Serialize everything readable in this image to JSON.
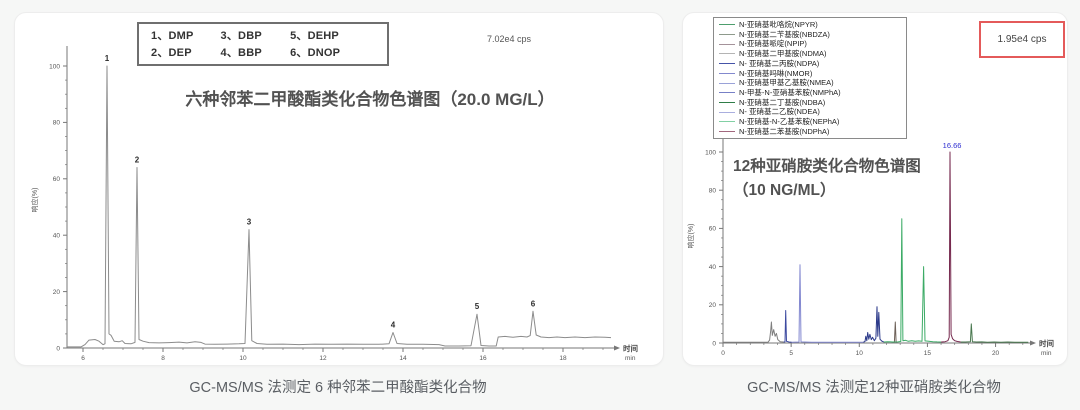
{
  "page": {
    "background": "#f6f7f6",
    "card_background": "#ffffff"
  },
  "left_panel": {
    "caption": "GC-MS/MS 法测定 6 种邻苯二甲酸酯类化合物",
    "title": "六种邻苯二甲酸酯类化合物色谱图（20.0 MG/L）",
    "cps_label": "7.02e4 cps",
    "ylabel": "响应(%)",
    "legend": {
      "cells": [
        "1、DMP",
        "3、DBP",
        "5、DEHP",
        "2、DEP",
        "4、BBP",
        "6、DNOP"
      ]
    }
  },
  "right_panel": {
    "caption": "GC-MS/MS 法测定12种亚硝胺类化合物",
    "title_line1": "12种亚硝胺类化合物色谱图",
    "title_line2": "（10 NG/ML）",
    "cps_label": "1.95e4 cps",
    "cps_box_color": "#e45a5a",
    "ylabel": "响应(%)",
    "legend_items": [
      {
        "label": "N-亚硝基吡咯烷(NPYR)",
        "color": "#4d9e6d"
      },
      {
        "label": "N-亚硝基二苄基胺(NBDZA)",
        "color": "#8e9a8c"
      },
      {
        "label": "N-亚硝基哌啶(NPIP)",
        "color": "#a4929a"
      },
      {
        "label": "N-亚硝基二甲基胺(NDMA)",
        "color": "#b4b4b4"
      },
      {
        "label": "N- 亚硝基二丙胺(NDPA)",
        "color": "#4553a8"
      },
      {
        "label": "N-亚硝基吗啉(NMOR)",
        "color": "#8389ce"
      },
      {
        "label": "N-亚硝基甲基乙基胺(NMEA)",
        "color": "#9aa2d8"
      },
      {
        "label": "N-甲基-N-亚硝基苯胺(NMPhA)",
        "color": "#7780c6"
      },
      {
        "label": "N-亚硝基二丁基胺(NDBA)",
        "color": "#2f7d48"
      },
      {
        "label": "N- 亚硝基二乙胺(NDEA)",
        "color": "#a9aede"
      },
      {
        "label": "N-亚硝基-N-乙基苯胺(NEPhA)",
        "color": "#82d0a4"
      },
      {
        "label": "N-亚硝基二苯基胺(NDPhA)",
        "color": "#a2687e"
      }
    ]
  },
  "chart_data": [
    {
      "type": "line",
      "title": "六种邻苯二甲酸酯类化合物色谱图（20.0 MG/L）",
      "xlabel": "时间",
      "x_unit": "min",
      "ylabel": "响应(%)",
      "xlim": [
        5.6,
        19.3
      ],
      "ylim": [
        0,
        100
      ],
      "xticks": [
        6,
        8,
        10,
        12,
        14,
        16,
        18
      ],
      "yticks": [
        0,
        20,
        40,
        60,
        80,
        100
      ],
      "x_minor_step": 0.5,
      "y_minor_step": 5,
      "annotation": "7.02e4 cps",
      "axis_color": "#777777",
      "grid": false,
      "peaks": [
        {
          "num": "1",
          "compound": "DMP",
          "rt": 6.6,
          "height_pct": 100
        },
        {
          "num": "2",
          "compound": "DEP",
          "rt": 7.35,
          "height_pct": 64
        },
        {
          "num": "3",
          "compound": "DBP",
          "rt": 10.15,
          "height_pct": 42
        },
        {
          "num": "4",
          "compound": "BBP",
          "rt": 13.75,
          "height_pct": 5.5
        },
        {
          "num": "5",
          "compound": "DEHP",
          "rt": 15.85,
          "height_pct": 12
        },
        {
          "num": "6",
          "compound": "DNOP",
          "rt": 17.25,
          "height_pct": 13
        }
      ],
      "traces": [
        {
          "name": "TIC",
          "color": "#8c8c8c",
          "width": 1,
          "points": [
            [
              5.6,
              0.4
            ],
            [
              5.95,
              0.4
            ],
            [
              6.05,
              1.2
            ],
            [
              6.15,
              2.8
            ],
            [
              6.3,
              3.0
            ],
            [
              6.4,
              2.4
            ],
            [
              6.5,
              1.2
            ],
            [
              6.55,
              1.5
            ],
            [
              6.6,
              100
            ],
            [
              6.65,
              5
            ],
            [
              6.7,
              4.5
            ],
            [
              6.78,
              2.4
            ],
            [
              6.9,
              2.2
            ],
            [
              6.98,
              2.6
            ],
            [
              7.05,
              1.6
            ],
            [
              7.2,
              1.5
            ],
            [
              7.3,
              2
            ],
            [
              7.35,
              64
            ],
            [
              7.4,
              3
            ],
            [
              7.5,
              2.4
            ],
            [
              7.65,
              1.9
            ],
            [
              7.9,
              1.8
            ],
            [
              8.15,
              1.9
            ],
            [
              8.4,
              2.1
            ],
            [
              8.6,
              1.8
            ],
            [
              8.8,
              2.2
            ],
            [
              8.95,
              2.0
            ],
            [
              9.05,
              1.4
            ],
            [
              9.3,
              1.3
            ],
            [
              9.6,
              1.4
            ],
            [
              9.9,
              1.5
            ],
            [
              10.05,
              1.6
            ],
            [
              10.15,
              42
            ],
            [
              10.22,
              2.6
            ],
            [
              10.35,
              1.6
            ],
            [
              10.6,
              1.3
            ],
            [
              11.0,
              1.4
            ],
            [
              11.4,
              1.2
            ],
            [
              11.8,
              1.4
            ],
            [
              12.2,
              1.3
            ],
            [
              12.6,
              1.4
            ],
            [
              13.0,
              1.3
            ],
            [
              13.4,
              1.3
            ],
            [
              13.65,
              1.5
            ],
            [
              13.75,
              5.5
            ],
            [
              13.85,
              1.6
            ],
            [
              14.1,
              1.3
            ],
            [
              14.5,
              1.3
            ],
            [
              14.9,
              1.2
            ],
            [
              15.05,
              0.7
            ],
            [
              15.4,
              0.7
            ],
            [
              15.7,
              0.8
            ],
            [
              15.85,
              12
            ],
            [
              15.95,
              0.9
            ],
            [
              16.15,
              0.7
            ],
            [
              16.33,
              0.7
            ],
            [
              16.38,
              3.9
            ],
            [
              16.55,
              4.1
            ],
            [
              16.75,
              3.8
            ],
            [
              16.95,
              4.1
            ],
            [
              17.1,
              3.9
            ],
            [
              17.18,
              4.4
            ],
            [
              17.25,
              13
            ],
            [
              17.33,
              4.6
            ],
            [
              17.45,
              3.9
            ],
            [
              17.65,
              3.7
            ],
            [
              17.85,
              3.9
            ],
            [
              18.05,
              3.7
            ],
            [
              18.3,
              3.9
            ],
            [
              18.55,
              3.7
            ],
            [
              18.8,
              3.9
            ],
            [
              19.05,
              3.8
            ],
            [
              19.2,
              3.7
            ]
          ]
        }
      ]
    },
    {
      "type": "line",
      "title": "12种亚硝胺类化合物色谱图（10 NG/ML）",
      "xlabel": "时间",
      "x_unit": "min",
      "ylabel": "响应(%)",
      "xlim": [
        0,
        22.6
      ],
      "ylim": [
        0,
        100
      ],
      "xticks": [
        0,
        5,
        10,
        15,
        20
      ],
      "yticks": [
        0,
        20,
        40,
        60,
        80,
        100
      ],
      "x_minor_step": 1,
      "y_minor_step": 5,
      "annotation": "1.95e4 cps",
      "axis_color": "#777777",
      "grid": false,
      "peaks": [
        {
          "rt": 3.55,
          "height_pct": 11
        },
        {
          "rt": 4.6,
          "height_pct": 17
        },
        {
          "rt": 5.65,
          "height_pct": 41
        },
        {
          "rt": 11.3,
          "height_pct": 19
        },
        {
          "rt": 11.43,
          "height_pct": 16
        },
        {
          "rt": 12.64,
          "height_pct": 11
        },
        {
          "rt": 13.12,
          "height_pct": 65
        },
        {
          "rt": 14.72,
          "height_pct": 40
        },
        {
          "rt": 16.66,
          "height_pct": 100,
          "label": "16.66",
          "label_color": "#2d2dd0"
        },
        {
          "rt": 18.22,
          "height_pct": 10
        }
      ],
      "traces": [
        {
          "color": "#7f7f7f",
          "width": 1,
          "points": [
            [
              0,
              0.4
            ],
            [
              3.3,
              0.4
            ],
            [
              3.42,
              1.5
            ],
            [
              3.5,
              6.5
            ],
            [
              3.55,
              11
            ],
            [
              3.62,
              4
            ],
            [
              3.72,
              7
            ],
            [
              3.82,
              3.5
            ],
            [
              3.92,
              5
            ],
            [
              4.02,
              1.8
            ],
            [
              4.2,
              0.7
            ],
            [
              4.45,
              0.5
            ]
          ]
        },
        {
          "color": "#3d4aa0",
          "width": 1,
          "points": [
            [
              4.45,
              0.5
            ],
            [
              4.55,
              0.6
            ],
            [
              4.6,
              17
            ],
            [
              4.66,
              0.9
            ],
            [
              4.85,
              0.5
            ],
            [
              5.05,
              0.4
            ]
          ]
        },
        {
          "color": "#8388d0",
          "width": 1,
          "points": [
            [
              5.05,
              0.4
            ],
            [
              5.58,
              0.5
            ],
            [
              5.65,
              41
            ],
            [
              5.72,
              0.6
            ],
            [
              6.5,
              0.4
            ],
            [
              8.0,
              0.4
            ],
            [
              9.5,
              0.4
            ],
            [
              10.3,
              0.4
            ]
          ]
        },
        {
          "color": "#2c3a8a",
          "width": 1,
          "points": [
            [
              10.3,
              0.4
            ],
            [
              10.42,
              0.8
            ],
            [
              10.48,
              3.5
            ],
            [
              10.55,
              1.2
            ],
            [
              10.62,
              5.5
            ],
            [
              10.7,
              2
            ],
            [
              10.78,
              4.5
            ],
            [
              10.88,
              1.8
            ],
            [
              10.98,
              3
            ],
            [
              11.1,
              1.2
            ],
            [
              11.22,
              2.5
            ],
            [
              11.3,
              19
            ],
            [
              11.36,
              3.5
            ],
            [
              11.43,
              16
            ],
            [
              11.52,
              2
            ],
            [
              11.65,
              1
            ],
            [
              11.8,
              0.5
            ]
          ]
        },
        {
          "color": "#6e6158",
          "width": 1,
          "points": [
            [
              12.5,
              0.4
            ],
            [
              12.58,
              0.6
            ],
            [
              12.64,
              11
            ],
            [
              12.7,
              0.6
            ],
            [
              12.8,
              0.4
            ]
          ]
        },
        {
          "color": "#3cab66",
          "width": 1,
          "points": [
            [
              11.8,
              0.5
            ],
            [
              12.1,
              0.7
            ],
            [
              12.45,
              0.5
            ],
            [
              12.85,
              0.6
            ],
            [
              13.05,
              0.8
            ],
            [
              13.12,
              65
            ],
            [
              13.2,
              1.2
            ],
            [
              13.4,
              1.4
            ],
            [
              13.6,
              0.9
            ],
            [
              13.85,
              1.2
            ],
            [
              14.1,
              0.9
            ],
            [
              14.35,
              1.1
            ],
            [
              14.6,
              0.9
            ],
            [
              14.72,
              40
            ],
            [
              14.82,
              1.1
            ],
            [
              15.1,
              0.9
            ],
            [
              15.4,
              0.7
            ],
            [
              15.7,
              0.6
            ],
            [
              16.0,
              0.5
            ]
          ]
        },
        {
          "color": "#76294e",
          "width": 1,
          "points": [
            [
              16.0,
              0.5
            ],
            [
              16.3,
              0.7
            ],
            [
              16.5,
              1.2
            ],
            [
              16.6,
              3
            ],
            [
              16.66,
              100
            ],
            [
              16.74,
              4.5
            ],
            [
              16.85,
              2.2
            ],
            [
              17.0,
              1.2
            ],
            [
              17.2,
              0.8
            ],
            [
              17.45,
              0.5
            ]
          ]
        },
        {
          "color": "#49784f",
          "width": 1,
          "points": [
            [
              17.45,
              0.5
            ],
            [
              17.8,
              0.5
            ],
            [
              18.15,
              0.7
            ],
            [
              18.22,
              10
            ],
            [
              18.3,
              0.7
            ],
            [
              18.6,
              0.5
            ],
            [
              19.0,
              0.6
            ],
            [
              19.4,
              0.4
            ],
            [
              19.9,
              0.5
            ],
            [
              20.4,
              0.4
            ],
            [
              20.9,
              0.5
            ],
            [
              21.4,
              0.4
            ],
            [
              22.0,
              0.4
            ],
            [
              22.4,
              0.4
            ]
          ]
        }
      ]
    }
  ]
}
